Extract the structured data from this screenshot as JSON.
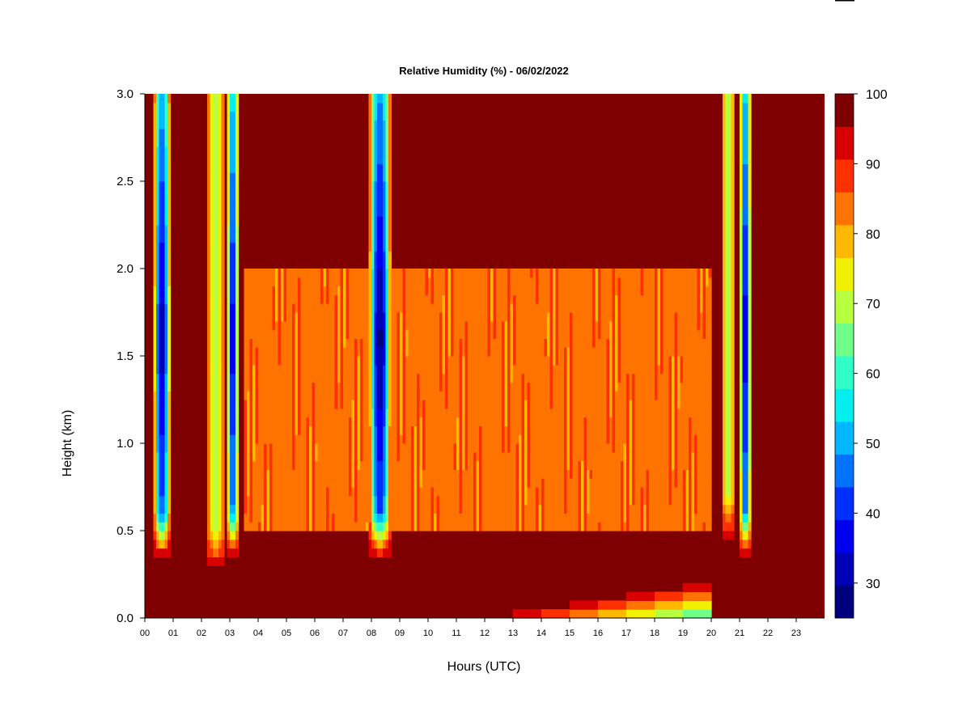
{
  "chart_data": {
    "type": "heatmap",
    "title": "Relative Humidity (%) - 06/02/2022",
    "xlabel": "Hours (UTC)",
    "ylabel": "Height (km)",
    "xlim": [
      0,
      24
    ],
    "ylim": [
      0.0,
      3.0
    ],
    "x_ticks": [
      "00",
      "01",
      "02",
      "03",
      "04",
      "05",
      "06",
      "07",
      "08",
      "09",
      "10",
      "11",
      "12",
      "13",
      "14",
      "15",
      "16",
      "17",
      "18",
      "19",
      "20",
      "21",
      "22",
      "23"
    ],
    "y_ticks": [
      "0.0",
      "0.5",
      "1.0",
      "1.5",
      "2.0",
      "2.5",
      "3.0"
    ],
    "colorbar": {
      "range": [
        25,
        100
      ],
      "step": 5,
      "tick_labels": [
        "30",
        "40",
        "50",
        "60",
        "70",
        "80",
        "90",
        "100"
      ],
      "tick_values": [
        30,
        40,
        50,
        60,
        70,
        80,
        90,
        100
      ],
      "colors": [
        "#00007f",
        "#0000b7",
        "#0000f0",
        "#0030ff",
        "#0074ff",
        "#00b8ff",
        "#00f0f0",
        "#30ffc8",
        "#70ff88",
        "#b8ff40",
        "#f0f000",
        "#ffb800",
        "#ff7400",
        "#ff3000",
        "#d80000",
        "#7f0000"
      ]
    },
    "features": [
      {
        "type": "dry_column",
        "center_hour": 0.6,
        "width_hours": 0.6,
        "min_rh": 30,
        "base_km": 0.35
      },
      {
        "type": "moist_column",
        "center_hour": 2.5,
        "width_hours": 0.7,
        "min_rh": 72,
        "base_km": 0.28
      },
      {
        "type": "dry_column",
        "center_hour": 3.1,
        "width_hours": 0.4,
        "min_rh": 33,
        "base_km": 0.35
      },
      {
        "type": "dry_column",
        "center_hour": 8.3,
        "width_hours": 0.8,
        "min_rh": 28,
        "base_km": 0.35
      },
      {
        "type": "moist_column",
        "center_hour": 20.6,
        "width_hours": 0.5,
        "min_rh": 72,
        "base_km": 0.45
      },
      {
        "type": "dry_column",
        "center_hour": 21.2,
        "width_hours": 0.4,
        "min_rh": 32,
        "base_km": 0.35
      },
      {
        "type": "layer",
        "hours": [
          3.5,
          20.0
        ],
        "km": [
          0.5,
          2.0
        ],
        "rh": 88
      },
      {
        "type": "surface_dry_layer",
        "hours": [
          12.0,
          20.0
        ],
        "max_km": 0.2,
        "min_rh": 60
      }
    ]
  }
}
